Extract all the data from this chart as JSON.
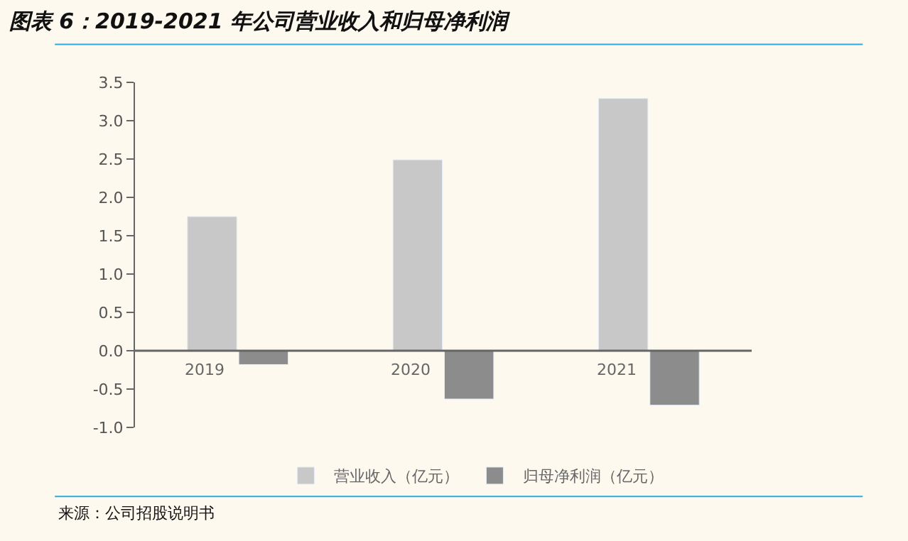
{
  "chart_data": {
    "type": "bar",
    "title": "图表 6：2019-2021 年公司营业收入和归母净利润",
    "categories": [
      "2019",
      "2020",
      "2021"
    ],
    "series": [
      {
        "name": "营业收入（亿元）",
        "color": "#c8c8c8",
        "values": [
          1.75,
          2.49,
          3.29
        ]
      },
      {
        "name": "归母净利润（亿元）",
        "color": "#8c8c8c",
        "values": [
          -0.18,
          -0.63,
          -0.71
        ]
      }
    ],
    "ylim": [
      -1.0,
      3.5
    ],
    "yticks": [
      {
        "value": -1.0,
        "label": "-1.0"
      },
      {
        "value": -0.5,
        "label": "-0.5"
      },
      {
        "value": 0,
        "label": "0.0"
      },
      {
        "value": 0.5,
        "label": "0.5"
      },
      {
        "value": 1.0,
        "label": "1.0"
      },
      {
        "value": 1.5,
        "label": "1.5"
      },
      {
        "value": 2.0,
        "label": "2.0"
      },
      {
        "value": 2.5,
        "label": "2.5"
      },
      {
        "value": 3.0,
        "label": "3.0"
      },
      {
        "value": 3.5,
        "label": "3.5"
      }
    ],
    "grid": false,
    "legend": "bottom",
    "annotations": [
      "来源：公司招股说明书"
    ]
  }
}
